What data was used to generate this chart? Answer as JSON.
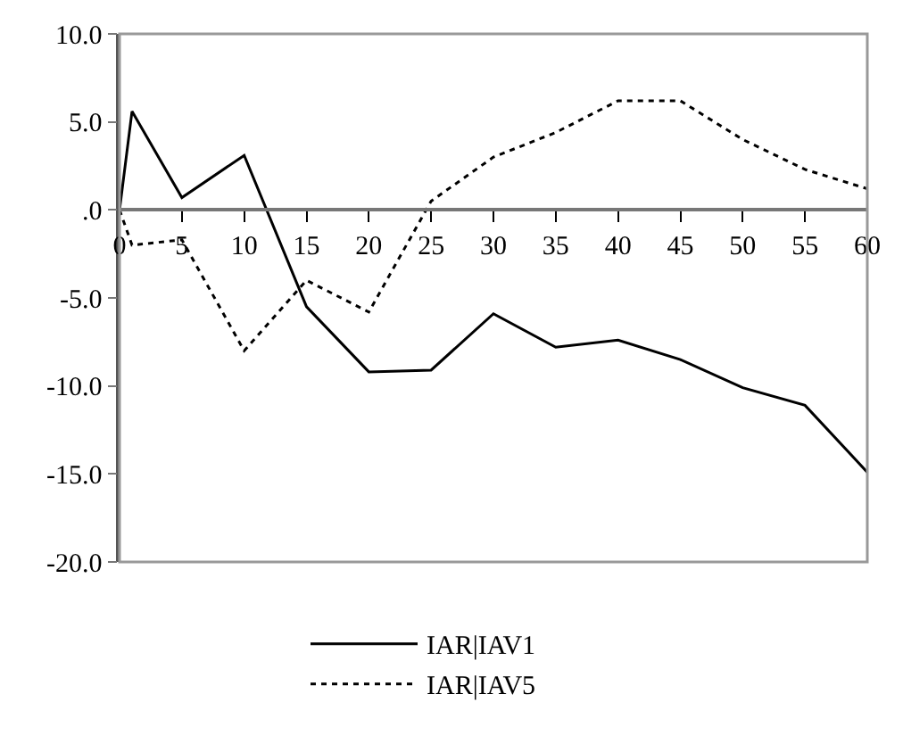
{
  "chart_data": {
    "type": "line",
    "x": [
      0,
      1,
      5,
      10,
      15,
      20,
      25,
      30,
      35,
      40,
      45,
      50,
      55,
      60
    ],
    "series": [
      {
        "name": "IAR|IAV1",
        "color": "#000000",
        "line_style": "solid",
        "values": [
          0,
          5.6,
          0.7,
          3.1,
          -5.5,
          -9.2,
          -9.1,
          -5.9,
          -7.8,
          -7.4,
          -8.5,
          -10.1,
          -11.1,
          -14.9
        ]
      },
      {
        "name": "IAR|IAV5",
        "color": "#000000",
        "line_style": "dotted",
        "values": [
          0,
          -2.0,
          -1.7,
          -8.0,
          -4.0,
          -5.8,
          0.5,
          3.0,
          4.4,
          6.2,
          6.2,
          4.0,
          2.3,
          1.2
        ]
      }
    ],
    "xlim": [
      0,
      60
    ],
    "xticks": [
      0,
      5,
      10,
      15,
      20,
      25,
      30,
      35,
      40,
      45,
      50,
      55,
      60
    ],
    "ylim": [
      -20,
      10
    ],
    "yticks": [
      {
        "value": 10,
        "label": "10.0"
      },
      {
        "value": 5,
        "label": "5.0"
      },
      {
        "value": 0,
        "label": ".0"
      },
      {
        "value": -5,
        "label": "-5.0"
      },
      {
        "value": -10,
        "label": "-10.0"
      },
      {
        "value": -15,
        "label": "-15.0"
      },
      {
        "value": -20,
        "label": "-20.0"
      }
    ],
    "legend": "bottom",
    "marker": "none"
  }
}
